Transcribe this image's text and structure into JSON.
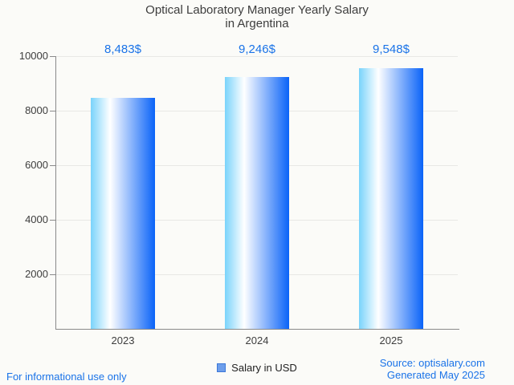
{
  "title": {
    "line1": "Optical Laboratory Manager Yearly Salary",
    "line2": "in Argentina"
  },
  "chart_data": {
    "type": "bar",
    "categories": [
      "2023",
      "2024",
      "2025"
    ],
    "values": [
      8483,
      9246,
      9548
    ],
    "value_labels": [
      "8,483$",
      "9,246$",
      "9,548$"
    ],
    "series_name": "Salary in USD",
    "title": "Optical Laboratory Manager Yearly Salary in Argentina",
    "xlabel": "",
    "ylabel": "",
    "ylim": [
      0,
      10000
    ],
    "yticks": [
      2000,
      4000,
      6000,
      8000,
      10000
    ],
    "grid": true,
    "legend_position": "bottom-center"
  },
  "legend": {
    "label": "Salary in USD"
  },
  "footer": {
    "left": "For informational use only",
    "source": "Source: optisalary.com",
    "generated": "Generated May 2025"
  },
  "colors": {
    "background": "#fbfbf8",
    "accent_blue": "#1a73e8",
    "text_dark": "#3d3d3d",
    "axis": "#8a8a8a",
    "gridline": "#e8e8e5",
    "bar_gradient_left": "#79d3fb",
    "bar_gradient_mid": "#ffffff",
    "bar_gradient_right": "#0a63f8",
    "legend_fill": "#6d9eeb",
    "legend_border": "#3c78d8"
  }
}
